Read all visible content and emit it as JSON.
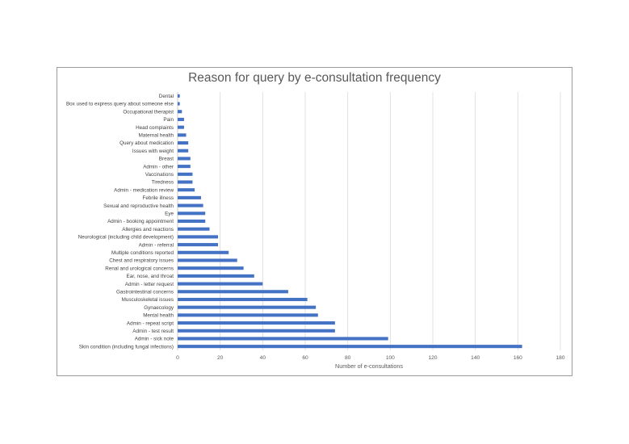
{
  "chart_data": {
    "type": "bar",
    "orientation": "horizontal",
    "title": "Reason for query by e-consultation frequency",
    "xlabel": "Number of e-consultations",
    "ylabel": "",
    "xlim": [
      0,
      180
    ],
    "xticks": [
      "0",
      "20",
      "40",
      "60",
      "80",
      "100",
      "120",
      "140",
      "160",
      "180"
    ],
    "grid": "vertical major gridlines",
    "legend": "none",
    "bar_color": "#4472c4",
    "categories": [
      "Dental",
      "Box used to express query about someone else",
      "Occupational therapist",
      "Pain",
      "Head complaints",
      "Maternal health",
      "Query about medication",
      "Issues with weight",
      "Breast",
      "Admin - other",
      "Vaccinations",
      "Tiredness",
      "Admin - medication review",
      "Febrile illness",
      "Sexual and reproductive health",
      "Eye",
      "Admin - booking appointment",
      "Allergies and reactions",
      "Neurological (including child development)",
      "Admin - referral",
      "Multiple conditions reported",
      "Chest and respiratory issues",
      "Renal and urological concerns",
      "Ear, nose, and throat",
      "Admin - letter request",
      "Gastrointestinal concerns",
      "Musculoskeletal issues",
      "Gynaecology",
      "Mental health",
      "Admin - repeat script",
      "Admin - test result",
      "Admin - sick note",
      "Skin condition (including fungal infections)"
    ],
    "values": [
      1,
      1,
      2,
      3,
      3,
      4,
      5,
      5,
      6,
      6,
      7,
      7,
      8,
      11,
      12,
      13,
      13,
      15,
      19,
      19,
      24,
      28,
      31,
      36,
      40,
      52,
      61,
      65,
      66,
      74,
      74,
      99,
      162
    ]
  }
}
